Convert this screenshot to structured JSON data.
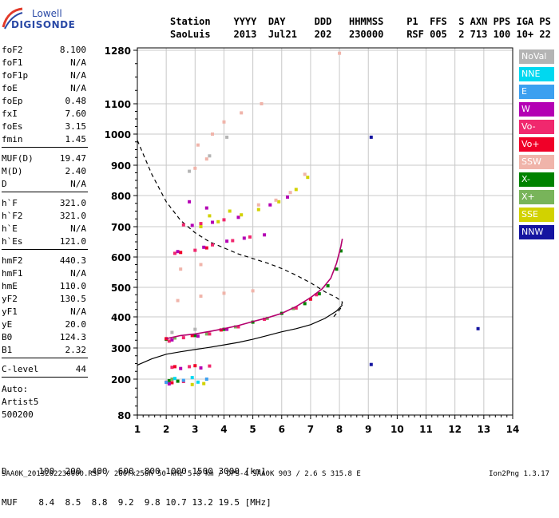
{
  "logo": {
    "line1": "Lowell",
    "line2": "DIGISONDE"
  },
  "header": {
    "labels": [
      "Station",
      "YYYY",
      "DAY",
      "DDD",
      "HHMMSS",
      "P1",
      "FFS",
      "S",
      "AXN",
      "PPS",
      "IGA",
      "PS"
    ],
    "values": [
      "SaoLuis",
      "2013",
      "Jul21",
      "202",
      "230000",
      "RSF",
      "005",
      "2",
      "713",
      "100",
      "10+",
      "22"
    ]
  },
  "parameters": [
    {
      "name": "foF2",
      "value": "8.100"
    },
    {
      "name": "foF1",
      "value": "N/A"
    },
    {
      "name": "foF1p",
      "value": "N/A"
    },
    {
      "name": "foE",
      "value": "N/A"
    },
    {
      "name": "foEp",
      "value": "0.48"
    },
    {
      "name": "fxI",
      "value": "7.60"
    },
    {
      "name": "foEs",
      "value": "3.15"
    },
    {
      "name": "fmin",
      "value": "1.45"
    },
    {
      "name": "MUF(D)",
      "value": "19.47"
    },
    {
      "name": "M(D)",
      "value": "2.40"
    },
    {
      "name": "D",
      "value": "N/A"
    },
    {
      "name": "h`F",
      "value": "321.0"
    },
    {
      "name": "h`F2",
      "value": "321.0"
    },
    {
      "name": "h`E",
      "value": "N/A"
    },
    {
      "name": "h`Es",
      "value": "121.0"
    },
    {
      "name": "hmF2",
      "value": "440.3"
    },
    {
      "name": "hmF1",
      "value": "N/A"
    },
    {
      "name": "hmE",
      "value": "110.0"
    },
    {
      "name": "yF2",
      "value": "130.5"
    },
    {
      "name": "yF1",
      "value": "N/A"
    },
    {
      "name": "yE",
      "value": "20.0"
    },
    {
      "name": "B0",
      "value": "124.3"
    },
    {
      "name": "B1",
      "value": "2.32"
    },
    {
      "name": "C-level",
      "value": "44"
    }
  ],
  "autoscaling": [
    "Auto:",
    "Artist5",
    "500200"
  ],
  "muf_table": {
    "d_label": "D",
    "d_values": [
      "100",
      "200",
      "400",
      "600",
      "800",
      "1000",
      "1500",
      "3000"
    ],
    "d_unit": "[km]",
    "muf_label": "MUF",
    "muf_values": [
      "8.4",
      "8.5",
      "8.8",
      "9.2",
      "9.8",
      "10.7",
      "13.2",
      "19.5"
    ],
    "muf_unit": "[MHz]"
  },
  "footer": "SAA0K_2013202230000.RSF / 260fx256h 50 kHz 5.0 km / DPS-4 SAA0K 903 / 2.6 S 315.8 E",
  "version": "Ion2Png 1.3.17",
  "legend": [
    {
      "label": "NoVal",
      "color": "#b4b4b4"
    },
    {
      "label": "NNE",
      "color": "#00d8f0"
    },
    {
      "label": "E",
      "color": "#3ca0f0"
    },
    {
      "label": "W",
      "color": "#b400b4"
    },
    {
      "label": "Vo-",
      "color": "#f0286e"
    },
    {
      "label": "Vo+",
      "color": "#f00028"
    },
    {
      "label": "SSW",
      "color": "#f0b4aa"
    },
    {
      "label": "X-",
      "color": "#008200"
    },
    {
      "label": "X+",
      "color": "#78b45a"
    },
    {
      "label": "SSE",
      "color": "#d2d200"
    },
    {
      "label": "NNW",
      "color": "#1414a0"
    }
  ],
  "chart_data": {
    "type": "scatter",
    "xlim": [
      1,
      14
    ],
    "ylim": [
      80,
      1300
    ],
    "x_ticks": [
      "1",
      "2",
      "3",
      "4",
      "5",
      "6",
      "7",
      "8",
      "9",
      "10",
      "11",
      "12",
      "13",
      "14"
    ],
    "y_ticks": [
      "80",
      "200",
      "300",
      "400",
      "500",
      "600",
      "700",
      "800",
      "900",
      "1000",
      "1100",
      "1280"
    ],
    "y_tick_values": [
      80,
      200,
      300,
      400,
      500,
      600,
      700,
      800,
      900,
      1000,
      1100,
      1280
    ],
    "y_scale": "nonlinear",
    "grid": true,
    "dashed_profile": [
      [
        1.0,
        980
      ],
      [
        1.5,
        870
      ],
      [
        2.0,
        780
      ],
      [
        2.5,
        720
      ],
      [
        3.0,
        680
      ],
      [
        3.5,
        650
      ],
      [
        4.0,
        630
      ],
      [
        4.5,
        610
      ],
      [
        5.0,
        595
      ],
      [
        5.5,
        580
      ],
      [
        6.0,
        562
      ],
      [
        6.5,
        540
      ],
      [
        7.0,
        515
      ],
      [
        7.5,
        485
      ],
      [
        7.9,
        465
      ],
      [
        8.1,
        450
      ],
      [
        8.05,
        430
      ],
      [
        7.8,
        400
      ]
    ],
    "solid_profile": [
      [
        1.0,
        245
      ],
      [
        1.5,
        265
      ],
      [
        2.0,
        280
      ],
      [
        2.5,
        288
      ],
      [
        3.0,
        295
      ],
      [
        3.5,
        302
      ],
      [
        4.0,
        310
      ],
      [
        4.5,
        318
      ],
      [
        5.0,
        328
      ],
      [
        5.5,
        340
      ],
      [
        6.0,
        352
      ],
      [
        6.5,
        362
      ],
      [
        7.0,
        375
      ],
      [
        7.5,
        395
      ],
      [
        7.9,
        420
      ],
      [
        8.1,
        440
      ]
    ],
    "trace_curve": [
      [
        2.0,
        330
      ],
      [
        2.5,
        340
      ],
      [
        3.0,
        345
      ],
      [
        3.5,
        353
      ],
      [
        4.0,
        362
      ],
      [
        4.5,
        372
      ],
      [
        5.0,
        385
      ],
      [
        5.5,
        397
      ],
      [
        6.0,
        412
      ],
      [
        6.5,
        435
      ],
      [
        7.0,
        465
      ],
      [
        7.4,
        495
      ],
      [
        7.7,
        530
      ],
      [
        7.9,
        580
      ],
      [
        8.05,
        635
      ],
      [
        8.1,
        660
      ]
    ],
    "traces": [
      {
        "name": "X-",
        "points": [
          [
            2.0,
            328
          ],
          [
            3.0,
            340
          ],
          [
            4.0,
            360
          ],
          [
            5.0,
            383
          ],
          [
            6.0,
            412
          ],
          [
            6.8,
            445
          ],
          [
            7.3,
            478
          ],
          [
            7.6,
            505
          ],
          [
            7.9,
            560
          ],
          [
            8.05,
            620
          ],
          [
            2.1,
            195
          ],
          [
            2.4,
            193
          ]
        ]
      },
      {
        "name": "X+",
        "points": [
          [
            2.3,
            332
          ],
          [
            3.4,
            345
          ],
          [
            4.4,
            368
          ],
          [
            5.5,
            395
          ],
          [
            6.4,
            428
          ],
          [
            2.2,
            200
          ]
        ]
      },
      {
        "name": "Vo-",
        "points": [
          [
            2.1,
            322
          ],
          [
            2.6,
            333
          ],
          [
            3.5,
            345
          ],
          [
            4.5,
            368
          ],
          [
            5.4,
            392
          ],
          [
            6.5,
            430
          ],
          [
            7.2,
            475
          ],
          [
            2.3,
            612
          ],
          [
            3.0,
            622
          ],
          [
            3.6,
            640
          ],
          [
            4.3,
            654
          ],
          [
            4.9,
            666
          ],
          [
            2.6,
            706
          ],
          [
            3.2,
            710
          ],
          [
            4.0,
            722
          ],
          [
            2.0,
            190
          ],
          [
            2.6,
            192
          ],
          [
            2.2,
            238
          ],
          [
            2.8,
            240
          ],
          [
            3.5,
            242
          ]
        ]
      },
      {
        "name": "Vo+",
        "points": [
          [
            2.0,
            330
          ],
          [
            2.9,
            340
          ],
          [
            3.9,
            358
          ],
          [
            7.0,
            460
          ],
          [
            2.5,
            615
          ],
          [
            3.4,
            630
          ],
          [
            2.3,
            240
          ],
          [
            3.0,
            243
          ],
          [
            2.2,
            188
          ]
        ]
      },
      {
        "name": "W",
        "points": [
          [
            2.2,
            326
          ],
          [
            3.1,
            338
          ],
          [
            4.1,
            360
          ],
          [
            2.4,
            618
          ],
          [
            3.3,
            632
          ],
          [
            4.1,
            652
          ],
          [
            4.7,
            662
          ],
          [
            5.4,
            673
          ],
          [
            2.9,
            704
          ],
          [
            3.6,
            714
          ],
          [
            4.5,
            730
          ],
          [
            5.6,
            770
          ],
          [
            6.2,
            795
          ],
          [
            2.8,
            780
          ],
          [
            3.4,
            760
          ],
          [
            2.5,
            234
          ],
          [
            3.2,
            236
          ],
          [
            2.1,
            184
          ]
        ]
      },
      {
        "name": "SSE",
        "points": [
          [
            3.2,
            700
          ],
          [
            3.8,
            716
          ],
          [
            4.6,
            738
          ],
          [
            5.2,
            755
          ],
          [
            5.9,
            780
          ],
          [
            6.5,
            820
          ],
          [
            6.9,
            860
          ],
          [
            3.5,
            735
          ],
          [
            4.2,
            750
          ],
          [
            2.9,
            182
          ],
          [
            3.3,
            185
          ]
        ]
      },
      {
        "name": "SSW",
        "points": [
          [
            5.2,
            770
          ],
          [
            5.8,
            785
          ],
          [
            6.3,
            810
          ],
          [
            6.8,
            870
          ],
          [
            3.1,
            965
          ],
          [
            3.6,
            1000
          ],
          [
            4.0,
            1040
          ],
          [
            4.6,
            1070
          ],
          [
            5.3,
            1100
          ],
          [
            3.0,
            890
          ],
          [
            3.4,
            920
          ],
          [
            2.5,
            560
          ],
          [
            3.2,
            575
          ],
          [
            2.4,
            455
          ],
          [
            3.2,
            470
          ],
          [
            4.0,
            480
          ],
          [
            5.0,
            488
          ],
          [
            8.0,
            1270
          ]
        ]
      },
      {
        "name": "NNE",
        "points": [
          [
            2.3,
            202
          ],
          [
            2.9,
            205
          ],
          [
            3.1,
            190
          ]
        ]
      },
      {
        "name": "E",
        "points": [
          [
            2.0,
            189
          ],
          [
            2.6,
            196
          ],
          [
            3.4,
            200
          ]
        ]
      },
      {
        "name": "NoVal",
        "points": [
          [
            2.2,
            350
          ],
          [
            3.0,
            360
          ],
          [
            2.8,
            880
          ],
          [
            3.5,
            930
          ],
          [
            4.1,
            990
          ]
        ]
      },
      {
        "name": "NNW",
        "points": [
          [
            9.1,
            247
          ],
          [
            9.1,
            990
          ],
          [
            12.8,
            362
          ]
        ]
      }
    ]
  }
}
